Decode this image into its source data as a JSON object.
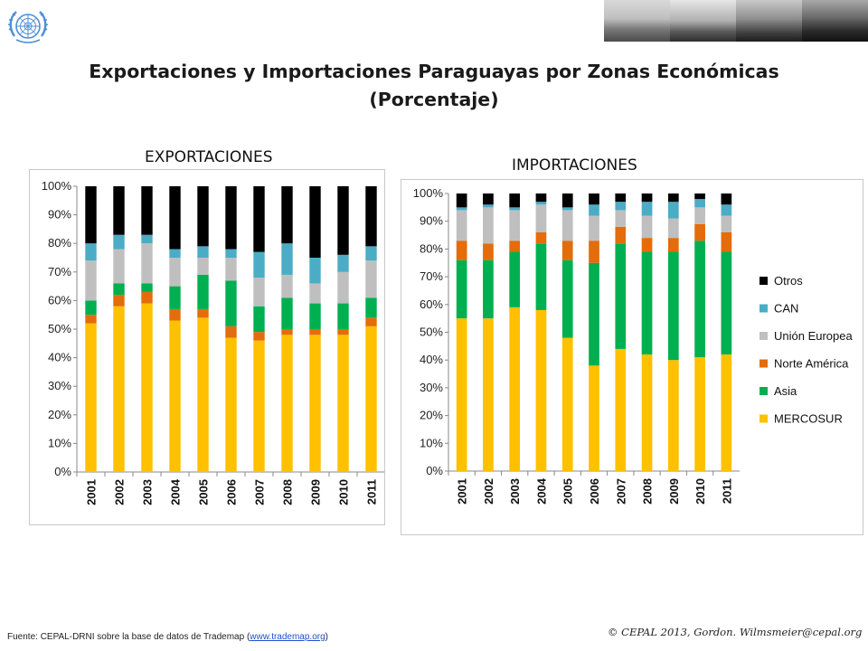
{
  "title_line1": "Exportaciones  y Importaciones Paraguayas por Zonas Económicas",
  "title_line2": "(Porcentaje)",
  "footer": {
    "source_prefix": "Fuente: CEPAL-DRNI sobre la base de datos de Trademap (",
    "source_link": "www.trademap.org",
    "source_suffix": ")",
    "copyright": "© CEPAL 2013, Gordon. Wilmsmeier@cepal.org"
  },
  "colors": {
    "MERCOSUR": "#FFC000",
    "Asia": "#00B050",
    "Norte América": "#E46C0A",
    "Unión Europea": "#BFBFBF",
    "CAN": "#4BACC6",
    "Otros": "#000000"
  },
  "chart_data": [
    {
      "type": "bar",
      "stacked": true,
      "title": "EXPORTACIONES",
      "categories": [
        "2001",
        "2002",
        "2003",
        "2004",
        "2005",
        "2006",
        "2007",
        "2008",
        "2009",
        "2010",
        "2011"
      ],
      "yticks": [
        "0%",
        "10%",
        "20%",
        "30%",
        "40%",
        "50%",
        "60%",
        "70%",
        "80%",
        "90%",
        "100%"
      ],
      "ylim": [
        0,
        100
      ],
      "series": [
        {
          "name": "MERCOSUR",
          "values": [
            52,
            58,
            59,
            53,
            54,
            47,
            46,
            48,
            48,
            48,
            51
          ]
        },
        {
          "name": "Norte América",
          "values": [
            3,
            4,
            4,
            4,
            3,
            4,
            3,
            2,
            2,
            2,
            3
          ]
        },
        {
          "name": "Asia",
          "values": [
            5,
            4,
            3,
            8,
            12,
            16,
            9,
            11,
            9,
            9,
            7
          ]
        },
        {
          "name": "Unión Europea",
          "values": [
            14,
            12,
            14,
            10,
            6,
            8,
            10,
            8,
            7,
            11,
            13
          ]
        },
        {
          "name": "CAN",
          "values": [
            6,
            5,
            3,
            3,
            4,
            3,
            9,
            11,
            9,
            6,
            5
          ]
        },
        {
          "name": "Otros",
          "values": [
            20,
            17,
            17,
            22,
            21,
            22,
            23,
            20,
            25,
            24,
            21
          ]
        }
      ]
    },
    {
      "type": "bar",
      "stacked": true,
      "title": "IMPORTACIONES",
      "categories": [
        "2001",
        "2002",
        "2003",
        "2004",
        "2005",
        "2006",
        "2007",
        "2008",
        "2009",
        "2010",
        "2011"
      ],
      "yticks": [
        "0%",
        "10%",
        "20%",
        "30%",
        "40%",
        "50%",
        "60%",
        "70%",
        "80%",
        "90%",
        "100%"
      ],
      "ylim": [
        0,
        100
      ],
      "legend": [
        "Otros",
        "CAN",
        "Unión Europea",
        "Norte América",
        "Asia",
        "MERCOSUR"
      ],
      "series": [
        {
          "name": "MERCOSUR",
          "values": [
            55,
            55,
            59,
            58,
            48,
            38,
            44,
            42,
            40,
            41,
            42
          ]
        },
        {
          "name": "Asia",
          "values": [
            21,
            21,
            20,
            24,
            28,
            37,
            38,
            37,
            39,
            42,
            37
          ]
        },
        {
          "name": "Norte América",
          "values": [
            7,
            6,
            4,
            4,
            7,
            8,
            6,
            5,
            5,
            6,
            7
          ]
        },
        {
          "name": "Unión Europea",
          "values": [
            11,
            13,
            11,
            10,
            11,
            9,
            6,
            8,
            7,
            6,
            6
          ]
        },
        {
          "name": "CAN",
          "values": [
            1,
            1,
            1,
            1,
            1,
            4,
            3,
            5,
            6,
            3,
            4
          ]
        },
        {
          "name": "Otros",
          "values": [
            5,
            4,
            5,
            3,
            5,
            4,
            3,
            3,
            3,
            2,
            4
          ]
        }
      ]
    }
  ]
}
